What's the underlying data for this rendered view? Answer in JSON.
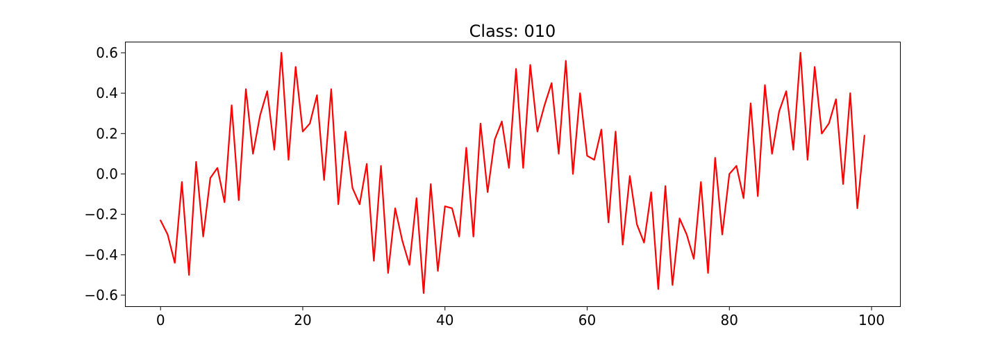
{
  "chart_data": {
    "type": "line",
    "title": "Class: 010",
    "xlabel": "",
    "ylabel": "",
    "xlim": [
      -5,
      104
    ],
    "ylim": [
      -0.655,
      0.655
    ],
    "grid": false,
    "x_ticks": [
      0,
      20,
      40,
      60,
      80,
      100
    ],
    "x_tick_labels": [
      "0",
      "20",
      "40",
      "60",
      "80",
      "100"
    ],
    "y_ticks": [
      0.6,
      0.4,
      0.2,
      0.0,
      -0.2,
      -0.4,
      -0.6
    ],
    "y_tick_labels": [
      "0.6",
      "0.4",
      "0.2",
      "0.0",
      "−0.2",
      "−0.4",
      "−0.6"
    ],
    "series": [
      {
        "name": "signal",
        "color": "#ff0000",
        "values": [
          -0.23,
          -0.3,
          -0.44,
          -0.04,
          -0.5,
          0.06,
          -0.31,
          -0.02,
          0.03,
          -0.14,
          0.34,
          -0.13,
          0.42,
          0.1,
          0.29,
          0.41,
          0.12,
          0.6,
          0.07,
          0.53,
          0.21,
          0.25,
          0.39,
          -0.03,
          0.42,
          -0.15,
          0.21,
          -0.07,
          -0.15,
          0.05,
          -0.43,
          0.04,
          -0.49,
          -0.17,
          -0.33,
          -0.45,
          -0.12,
          -0.59,
          -0.05,
          -0.48,
          -0.16,
          -0.17,
          -0.31,
          0.13,
          -0.31,
          0.25,
          -0.09,
          0.17,
          0.26,
          0.03,
          0.52,
          0.03,
          0.54,
          0.21,
          0.34,
          0.45,
          0.1,
          0.56,
          0.0,
          0.4,
          0.09,
          0.07,
          0.22,
          -0.24,
          0.21,
          -0.35,
          -0.01,
          -0.25,
          -0.34,
          -0.09,
          -0.57,
          -0.06,
          -0.55,
          -0.22,
          -0.3,
          -0.42,
          -0.04,
          -0.49,
          0.08,
          -0.3,
          0.0,
          0.04,
          -0.12,
          0.35,
          -0.11,
          0.44,
          0.1,
          0.31,
          0.41,
          0.12,
          0.6,
          0.07,
          0.53,
          0.2,
          0.25,
          0.37,
          -0.05,
          0.4,
          -0.17,
          0.19
        ]
      }
    ]
  }
}
